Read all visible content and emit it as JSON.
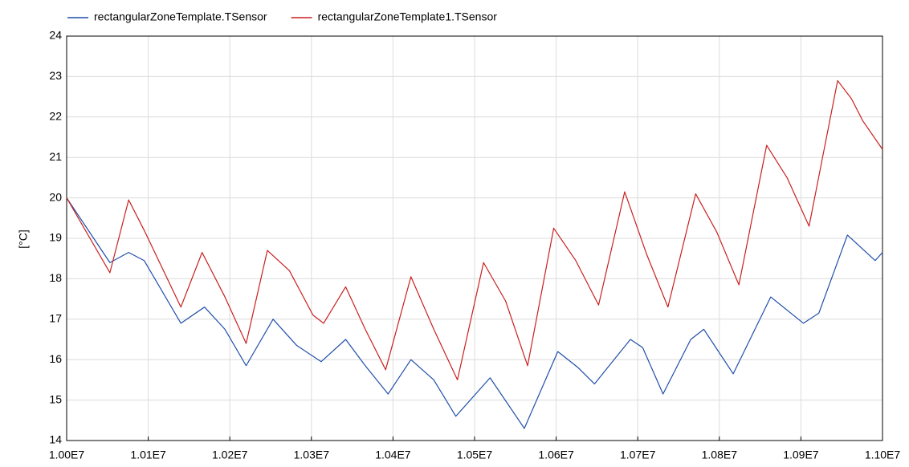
{
  "chart_data": {
    "type": "line",
    "y_label": "[°C]",
    "xlim": [
      10000000,
      11000000
    ],
    "ylim": [
      14,
      24
    ],
    "xticks": [
      {
        "value": 10000000,
        "label": "1.00E7"
      },
      {
        "value": 10100000,
        "label": "1.01E7"
      },
      {
        "value": 10200000,
        "label": "1.02E7"
      },
      {
        "value": 10300000,
        "label": "1.03E7"
      },
      {
        "value": 10400000,
        "label": "1.04E7"
      },
      {
        "value": 10500000,
        "label": "1.05E7"
      },
      {
        "value": 10600000,
        "label": "1.06E7"
      },
      {
        "value": 10700000,
        "label": "1.07E7"
      },
      {
        "value": 10800000,
        "label": "1.08E7"
      },
      {
        "value": 10900000,
        "label": "1.09E7"
      },
      {
        "value": 11000000,
        "label": "1.10E7"
      }
    ],
    "yticks": [
      14,
      15,
      16,
      17,
      18,
      19,
      20,
      21,
      22,
      23,
      24
    ],
    "grid": true,
    "legend": "top",
    "series": [
      {
        "name": "rectangularZoneTemplate.TSensor",
        "color": "#1f4fa8",
        "x": [
          10000000,
          10053000,
          10076000,
          10095000,
          10140000,
          10169000,
          10194000,
          10220000,
          10253000,
          10282000,
          10312000,
          10342000,
          10366000,
          10394000,
          10422000,
          10450000,
          10477000,
          10519000,
          10561000,
          10602000,
          10627000,
          10647000,
          10691000,
          10706000,
          10731000,
          10765000,
          10781000,
          10817000,
          10863000,
          10903000,
          10922000,
          10957000,
          10991000,
          11000000
        ],
        "values": [
          20.0,
          18.4,
          18.65,
          18.45,
          16.9,
          17.3,
          16.75,
          15.85,
          17.0,
          16.35,
          15.95,
          16.5,
          15.85,
          15.15,
          16.0,
          15.5,
          14.6,
          15.55,
          14.3,
          16.2,
          15.8,
          15.4,
          16.5,
          16.3,
          15.15,
          16.5,
          16.75,
          15.65,
          17.55,
          16.9,
          17.15,
          19.08,
          18.45,
          18.65
        ]
      },
      {
        "name": "rectangularZoneTemplate1.TSensor",
        "color": "#c8201f",
        "x": [
          10000000,
          10053000,
          10076000,
          10095000,
          10140000,
          10166000,
          10194000,
          10220000,
          10246000,
          10273000,
          10302000,
          10315000,
          10342000,
          10366000,
          10391000,
          10422000,
          10450000,
          10479000,
          10511000,
          10538000,
          10565000,
          10597000,
          10624000,
          10652000,
          10684000,
          10711000,
          10737000,
          10771000,
          10797000,
          10824000,
          10858000,
          10883000,
          10910000,
          10945000,
          10962000,
          10976000,
          11000000
        ],
        "values": [
          20.0,
          18.15,
          19.95,
          19.2,
          17.3,
          18.65,
          17.55,
          16.4,
          18.7,
          18.2,
          17.1,
          16.9,
          17.8,
          16.75,
          15.75,
          18.05,
          16.75,
          15.5,
          18.4,
          17.45,
          15.85,
          19.25,
          18.45,
          17.35,
          20.15,
          18.6,
          17.3,
          20.1,
          19.15,
          17.85,
          21.3,
          20.5,
          19.3,
          22.9,
          22.45,
          21.9,
          21.2
        ]
      }
    ]
  }
}
